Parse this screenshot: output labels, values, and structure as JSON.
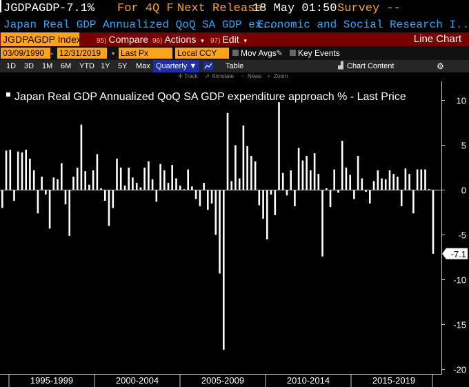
{
  "header": {
    "ticker": "JGDPAGDP",
    "last_value": "-7.1%",
    "period": "For 4Q F",
    "next_release_label": "Next Release",
    "next_release_date": "18 May 01:50",
    "survey_label": "Survey --"
  },
  "description": {
    "title": "Japan Real GDP Annualized QoQ SA GDP ex...",
    "source": "Economic and Social Research I..."
  },
  "menu": {
    "index_label": "JGDPAGDP Index",
    "compare_num": "95)",
    "compare_label": "Compare",
    "actions_num": "96)",
    "actions_label": "Actions",
    "edit_num": "97)",
    "edit_label": "Edit",
    "chart_type": "Line Chart"
  },
  "settings": {
    "start_date": "03/09/1990",
    "end_date": "12/31/2019",
    "price_field": "Last Px",
    "currency": "Local CCY",
    "mov_avgs": "Mov Avgs",
    "key_events": "Key Events"
  },
  "toolbar": {
    "periods": [
      "1D",
      "3D",
      "1M",
      "6M",
      "YTD",
      "1Y",
      "5Y",
      "Max"
    ],
    "frequency": "Quarterly",
    "table_label": "Table",
    "chart_content": "Chart Content"
  },
  "tools": {
    "track": "Track",
    "annotate": "Annotate",
    "news": "News",
    "zoom": "Zoom"
  },
  "colors": {
    "accent_orange": "#ffa31a",
    "menu_red": "#7a0000",
    "desc_blue": "#2ca6ff",
    "selected_blue": "#1e2ea8",
    "bar": "#ffffff"
  },
  "chart_data": {
    "type": "bar",
    "title": "Japan Real GDP Annualized QoQ SA GDP expenditure approach % - Last Price",
    "last_value_label": "-7.1",
    "ylim": [
      -20.5,
      11.5
    ],
    "yticks": [
      10,
      5,
      0,
      -5,
      -10,
      -15,
      -20
    ],
    "x_labels": [
      "1995-1999",
      "2000-2004",
      "2005-2009",
      "2010-2014",
      "2015-2019"
    ],
    "grid": false,
    "values": [
      -2,
      4.4,
      4.5,
      -1.2,
      4.3,
      4.2,
      4.5,
      3.5,
      2.2,
      -2.6,
      1.5,
      -0.5,
      -4.3,
      1.4,
      1.2,
      3,
      -1.6,
      -5.1,
      1.5,
      2.5,
      7.3,
      2.1,
      0.6,
      2.2,
      4,
      0.2,
      -1.2,
      -4,
      -2,
      3.5,
      2.5,
      0.5,
      2.5,
      1.4,
      0.8,
      0.3,
      2.5,
      3.2,
      1.2,
      -1.3,
      2.9,
      2.2,
      0.8,
      2.8,
      1.3,
      0.5,
      0.1,
      2.3,
      0.4,
      -1,
      -1.8,
      0.8,
      -2.2,
      -1.5,
      -5,
      -9.3,
      -17.8,
      8.6,
      1,
      5,
      1.3,
      7.2,
      4.9,
      3.8,
      3.2,
      -1.7,
      -3.2,
      -5.5,
      -0.5,
      -2.8,
      9.8,
      1.9,
      -0.6,
      2.2,
      -1.8,
      4.7,
      3.3,
      3.8,
      2.2,
      4.1,
      1.8,
      -7.4,
      0.2,
      -1.9,
      2.3,
      -0.3,
      5.5,
      2.5,
      1.7,
      -1,
      3.8,
      1.3,
      -0.2,
      -1.5,
      1,
      2.2,
      1.3,
      1.2,
      2.2,
      1.8,
      1.5,
      -1.8,
      2.4,
      1.8,
      -2.6,
      2.3,
      2.3,
      2.3,
      0.1,
      -7.1
    ]
  }
}
